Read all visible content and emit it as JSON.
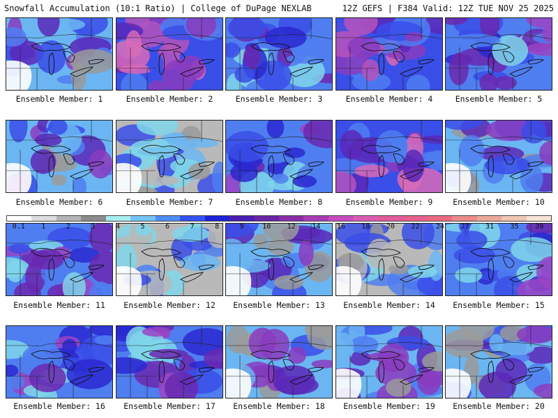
{
  "header": {
    "left": "Snowfall Accumulation (10:1 Ratio) | College of DuPage NEXLAB",
    "right": "12Z GEFS | F384 Valid: 12Z TUE NOV 25 2025"
  },
  "legend": {
    "labels": [
      "0.1",
      "1",
      "2",
      "3",
      "4",
      "5",
      "6",
      "7",
      "8",
      "9",
      "10",
      "12",
      "14",
      "16",
      "18",
      "20",
      "22",
      "24",
      "27",
      "31",
      "35",
      "39"
    ],
    "colors": [
      "#ffffff",
      "#dcdcdc",
      "#b4b4b4",
      "#8c8c8c",
      "#a8ecf0",
      "#72c4f5",
      "#4f8cf2",
      "#3352f2",
      "#1c22d6",
      "#4b1eb2",
      "#6a24a6",
      "#8a2ca8",
      "#a83cb4",
      "#c64cc0",
      "#dc5cb4",
      "#e25c9c",
      "#e8608c",
      "#ea6a80",
      "#ea8a8a",
      "#eaa89a",
      "#eec6b4",
      "#f6e2d6"
    ]
  },
  "members": [
    {
      "label": "Ensemble Member: 1",
      "intensity": 2
    },
    {
      "label": "Ensemble Member: 2",
      "intensity": 4
    },
    {
      "label": "Ensemble Member: 3",
      "intensity": 3
    },
    {
      "label": "Ensemble Member: 4",
      "intensity": 4
    },
    {
      "label": "Ensemble Member: 5",
      "intensity": 3
    },
    {
      "label": "Ensemble Member: 6",
      "intensity": 2
    },
    {
      "label": "Ensemble Member: 7",
      "intensity": 1
    },
    {
      "label": "Ensemble Member: 8",
      "intensity": 3
    },
    {
      "label": "Ensemble Member: 9",
      "intensity": 4
    },
    {
      "label": "Ensemble Member: 10",
      "intensity": 2
    },
    {
      "label": "Ensemble Member: 11",
      "intensity": 3
    },
    {
      "label": "Ensemble Member: 12",
      "intensity": 1
    },
    {
      "label": "Ensemble Member: 13",
      "intensity": 2
    },
    {
      "label": "Ensemble Member: 14",
      "intensity": 1
    },
    {
      "label": "Ensemble Member: 15",
      "intensity": 3
    },
    {
      "label": "Ensemble Member: 16",
      "intensity": 3
    },
    {
      "label": "Ensemble Member: 17",
      "intensity": 3
    },
    {
      "label": "Ensemble Member: 18",
      "intensity": 2
    },
    {
      "label": "Ensemble Member: 19",
      "intensity": 2
    },
    {
      "label": "Ensemble Member: 20",
      "intensity": 2
    }
  ]
}
